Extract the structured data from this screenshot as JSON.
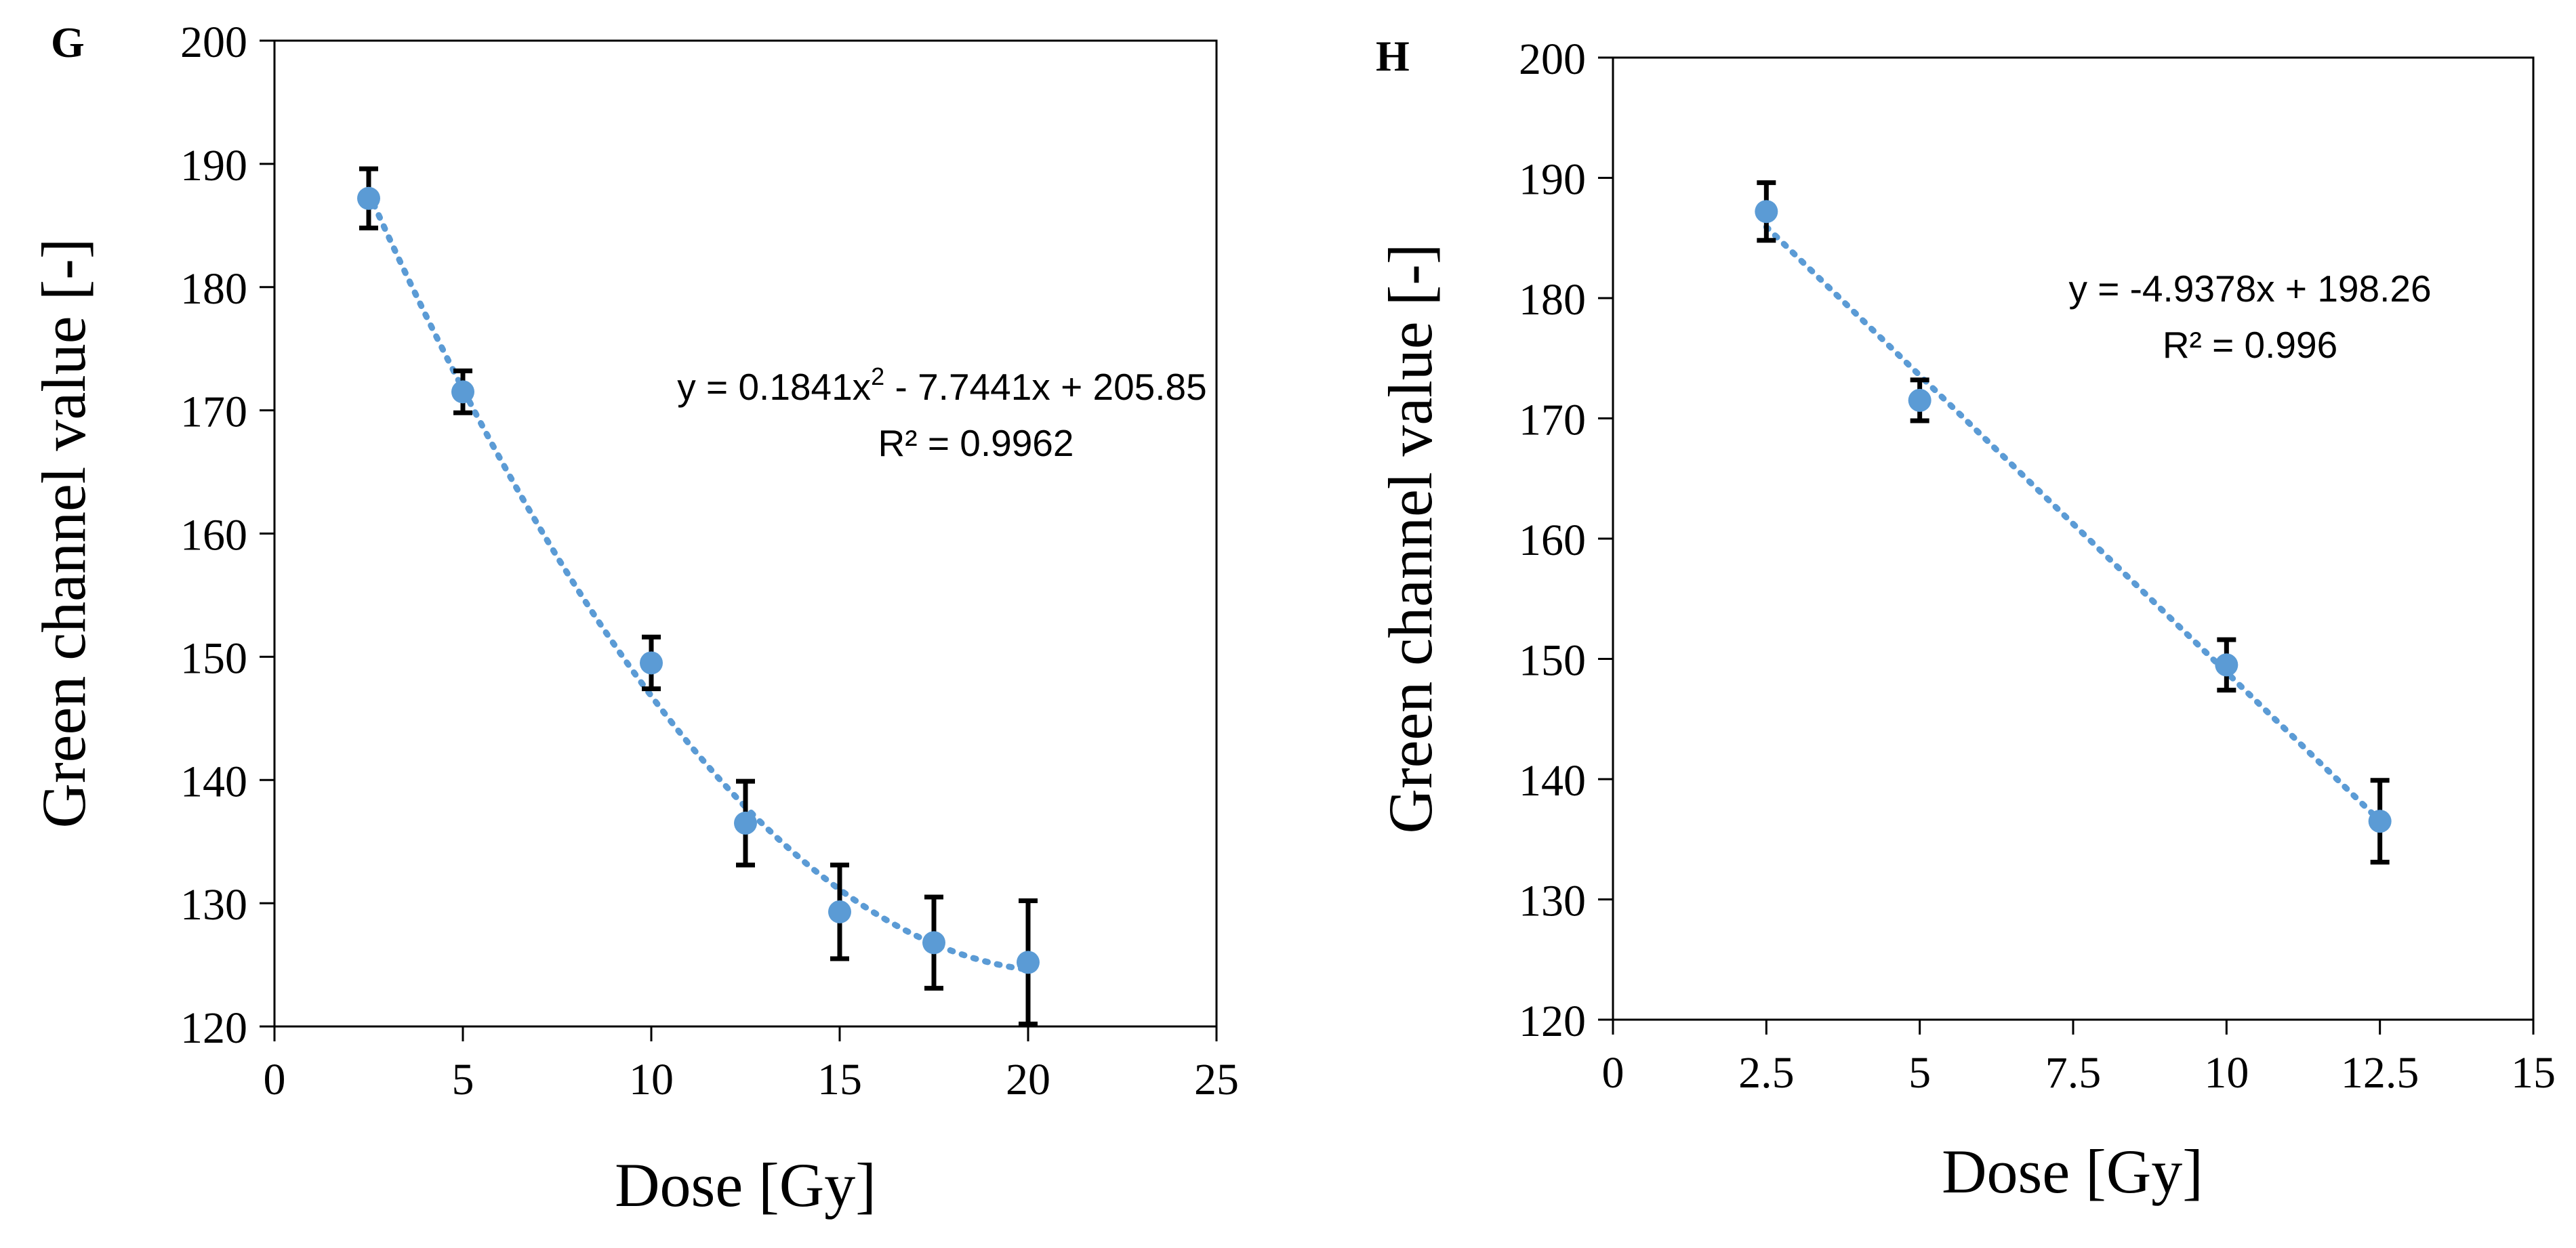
{
  "colors": {
    "marker": "#5B9BD5",
    "trendline": "#5B9BD5",
    "axis": "#000000",
    "errorbar": "#000000",
    "background": "#ffffff"
  },
  "chart_data": [
    {
      "panel_label": "G",
      "type": "scatter",
      "title": "",
      "xlabel": "Dose [Gy]",
      "ylabel": "Green channel value [-]",
      "xlim": [
        0,
        25
      ],
      "ylim": [
        120,
        200
      ],
      "xticks": [
        0,
        5,
        10,
        15,
        20,
        25
      ],
      "xtick_labels": [
        "0",
        "5",
        "10",
        "15",
        "20",
        "25"
      ],
      "yticks": [
        120,
        130,
        140,
        150,
        160,
        170,
        180,
        190,
        200
      ],
      "ytick_labels": [
        "120",
        "130",
        "140",
        "150",
        "160",
        "170",
        "180",
        "190",
        "200"
      ],
      "grid": false,
      "x": [
        2.5,
        5,
        10,
        12.5,
        15,
        17.5,
        20
      ],
      "y": [
        187.2,
        171.5,
        149.5,
        136.5,
        129.3,
        126.8,
        125.2
      ],
      "error": [
        2.4,
        1.7,
        2.1,
        3.4,
        3.8,
        3.7,
        5.0
      ],
      "trendline": {
        "type": "polynomial",
        "coefficients": {
          "a": 0.1841,
          "b": -7.7441,
          "c": 205.85
        },
        "x_range": [
          2.5,
          20
        ]
      },
      "equation": {
        "prefix": "y = 0.1841x",
        "superscript": "2",
        "suffix": " - 7.7441x + 205.85",
        "r2": "R² = 0.9962"
      }
    },
    {
      "panel_label": "H",
      "type": "scatter",
      "title": "",
      "xlabel": "Dose [Gy]",
      "ylabel": "Green channel value [-]",
      "xlim": [
        0,
        15
      ],
      "ylim": [
        120,
        200
      ],
      "xticks": [
        0,
        2.5,
        5,
        7.5,
        10,
        12.5,
        15
      ],
      "xtick_labels": [
        "0",
        "2.5",
        "5",
        "7.5",
        "10",
        "12.5",
        "15"
      ],
      "yticks": [
        120,
        130,
        140,
        150,
        160,
        170,
        180,
        190,
        200
      ],
      "ytick_labels": [
        "120",
        "130",
        "140",
        "150",
        "160",
        "170",
        "180",
        "190",
        "200"
      ],
      "grid": false,
      "x": [
        2.5,
        5,
        10,
        12.5
      ],
      "y": [
        187.2,
        171.5,
        149.5,
        136.5
      ],
      "error": [
        2.4,
        1.7,
        2.1,
        3.4
      ],
      "trendline": {
        "type": "linear",
        "coefficients": {
          "m": -4.9378,
          "b": 198.26
        },
        "x_range": [
          2.5,
          12.5
        ]
      },
      "equation": {
        "line": "y = -4.9378x + 198.26",
        "r2": "R² = 0.996"
      }
    }
  ]
}
